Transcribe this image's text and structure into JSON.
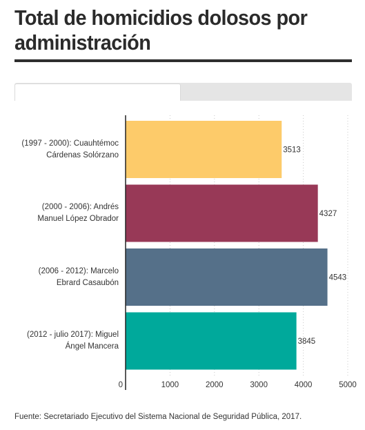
{
  "header": {
    "title_line1": "Total de homicidios dolosos por",
    "title_line2": "administración"
  },
  "tabs": [
    {
      "label": "",
      "active": true
    },
    {
      "label": "",
      "active": false
    }
  ],
  "chart_data": {
    "type": "bar",
    "orientation": "horizontal",
    "title": "Total de homicidios dolosos por administración",
    "categories": [
      {
        "line1": "(1997 - 2000): Cuauhtémoc",
        "line2": "Cárdenas Solórzano"
      },
      {
        "line1": "(2000 - 2006): Andrés",
        "line2": "Manuel López Obrador"
      },
      {
        "line1": "(2006 - 2012): Marcelo",
        "line2": "Ebrard Casaubón"
      },
      {
        "line1": "(2012 - julio 2017): Miguel",
        "line2": "Ángel Mancera"
      }
    ],
    "values": [
      3513,
      4327,
      4543,
      3845
    ],
    "value_labels": [
      "3513",
      "4327",
      "4543",
      "3845"
    ],
    "colors": [
      "#fdcb6a",
      "#983957",
      "#557089",
      "#00a99b"
    ],
    "xlim": [
      0,
      5000
    ],
    "x_ticks": [
      0,
      1000,
      2000,
      3000,
      4000,
      5000
    ],
    "x_tick_labels": [
      "0",
      "1000",
      "2000",
      "3000",
      "4000",
      "5000"
    ],
    "grid": "vertical dotted",
    "legend": "none"
  },
  "footer": {
    "source": "Fuente: Secretariado Ejecutivo del Sistema Nacional de Seguridad Pública, 2017."
  }
}
